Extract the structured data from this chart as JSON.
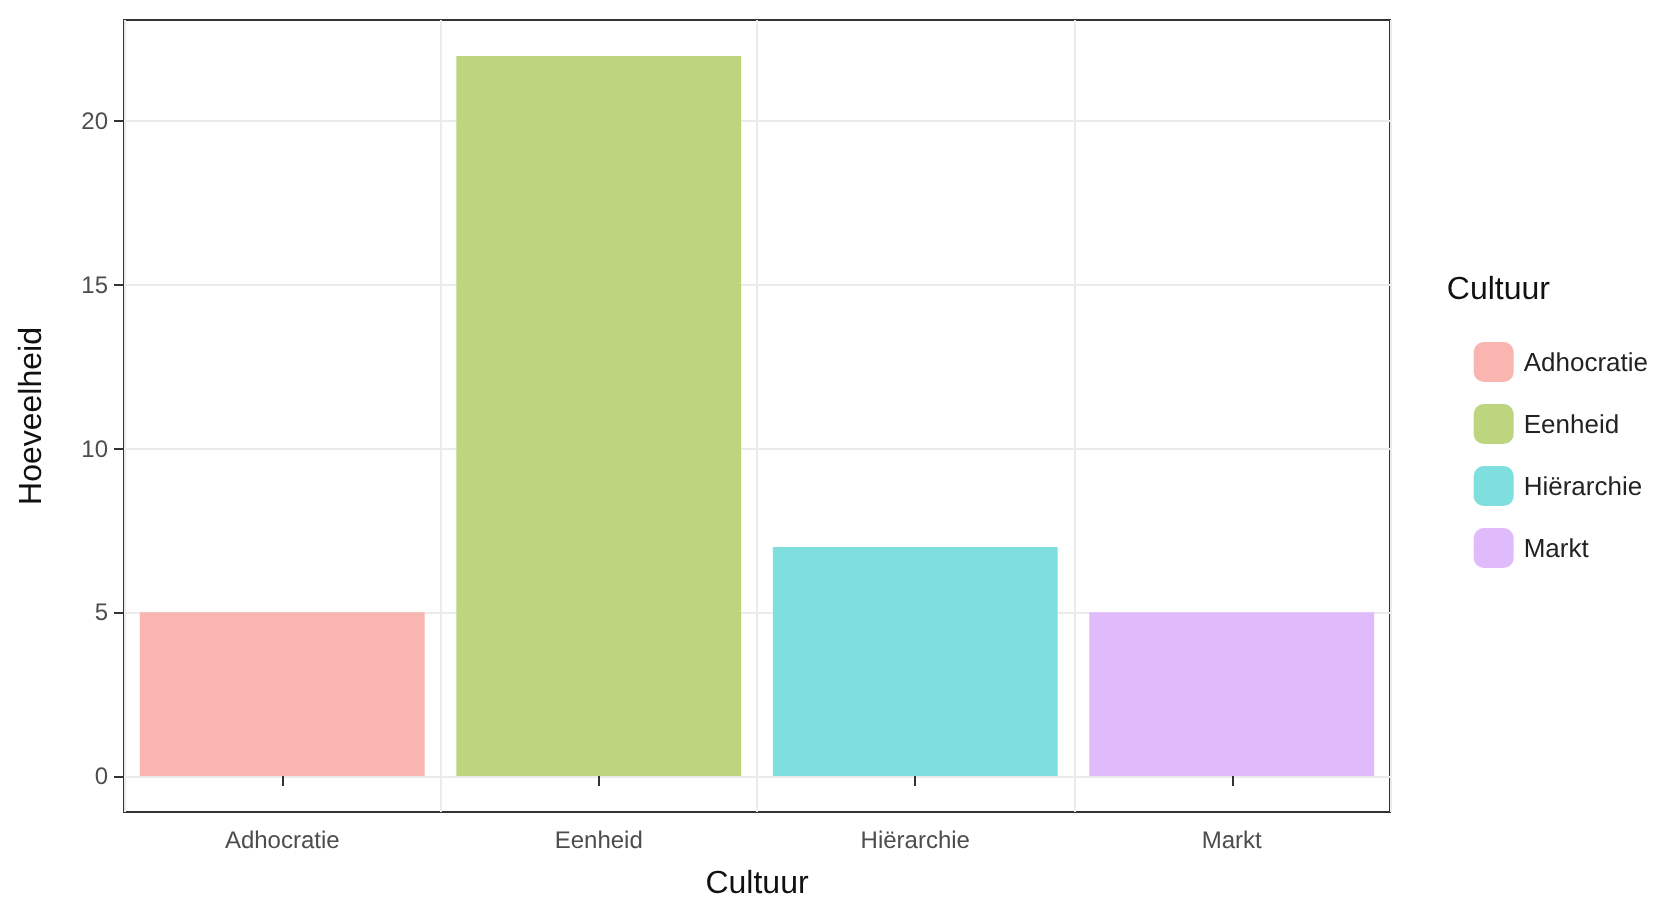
{
  "chart_data": {
    "type": "bar",
    "xlabel": "Cultuur",
    "ylabel": "Hoeveelheid",
    "legend_title": "Cultuur",
    "categories": [
      "Adhocratie",
      "Eenheid",
      "Hiërarchie",
      "Markt"
    ],
    "series": [
      {
        "name": "Adhocratie",
        "color": "#f9b5b0",
        "values": [
          5,
          null,
          null,
          null
        ]
      },
      {
        "name": "Eenheid",
        "color": "#bed580",
        "values": [
          null,
          22,
          null,
          null
        ]
      },
      {
        "name": "Hiërarchie",
        "color": "#7fdfdf",
        "values": [
          null,
          null,
          7,
          null
        ]
      },
      {
        "name": "Markt",
        "color": "#e0bbfb",
        "values": [
          null,
          null,
          null,
          5
        ]
      }
    ],
    "ylim": [
      -1.1,
      23.1
    ],
    "yticks": [
      0,
      5,
      10,
      15,
      20
    ],
    "grid": true,
    "legend": "right"
  }
}
